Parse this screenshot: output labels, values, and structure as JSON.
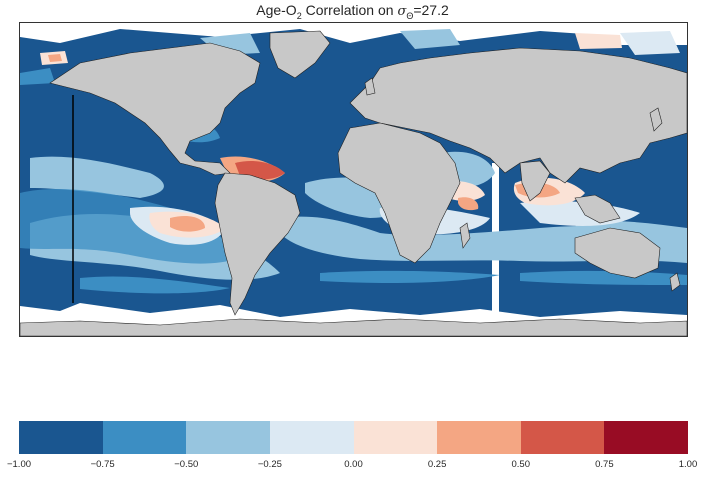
{
  "title": {
    "prefix": "Age-O",
    "sub": "2",
    "middle": " Correlation on ",
    "sigma": "σ",
    "sigma_sub": "Θ",
    "suffix": "=27.2"
  },
  "colorbar": {
    "colors": [
      "#1a5690",
      "#3c8ec3",
      "#97c5df",
      "#dce9f3",
      "#fae2d6",
      "#f4a683",
      "#d45748",
      "#980c24"
    ],
    "tick_labels": [
      "−1.00",
      "−0.75",
      "−0.50",
      "−0.25",
      "0.00",
      "0.25",
      "0.50",
      "0.75",
      "1.00"
    ]
  },
  "map": {
    "land_color": "#c8c8c8",
    "missing_color": "#ffffff",
    "legend_range": [
      -1.0,
      1.0
    ]
  }
}
